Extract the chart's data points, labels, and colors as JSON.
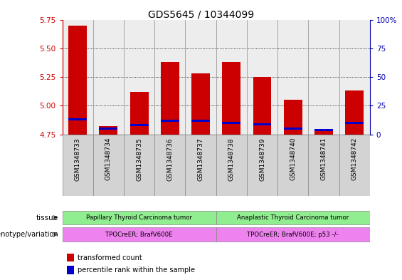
{
  "title": "GDS5645 / 10344099",
  "samples": [
    "GSM1348733",
    "GSM1348734",
    "GSM1348735",
    "GSM1348736",
    "GSM1348737",
    "GSM1348738",
    "GSM1348739",
    "GSM1348740",
    "GSM1348741",
    "GSM1348742"
  ],
  "red_values": [
    5.7,
    4.82,
    5.12,
    5.38,
    5.28,
    5.38,
    5.25,
    5.05,
    4.8,
    5.13
  ],
  "blue_values": [
    4.88,
    4.8,
    4.83,
    4.87,
    4.87,
    4.85,
    4.84,
    4.8,
    4.79,
    4.85
  ],
  "ymin": 4.75,
  "ymax": 5.75,
  "y2min": 0,
  "y2max": 100,
  "yticks": [
    4.75,
    5.0,
    5.25,
    5.5,
    5.75
  ],
  "y2ticks": [
    0,
    25,
    50,
    75,
    100
  ],
  "tissue_group1": "Papillary Thyroid Carcinoma tumor",
  "tissue_group2": "Anaplastic Thyroid Carcinoma tumor",
  "tissue_group1_samples": [
    0,
    1,
    2,
    3,
    4
  ],
  "tissue_group2_samples": [
    5,
    6,
    7,
    8,
    9
  ],
  "genotype_group1": "TPOCreER; BrafV600E",
  "genotype_group2": "TPOCreER; BrafV600E; p53 -/-",
  "tissue_color": "#90EE90",
  "genotype_color": "#EE82EE",
  "bar_color": "#CC0000",
  "blue_color": "#0000CC",
  "axis_left_color": "#CC0000",
  "axis_right_color": "#0000AA",
  "legend_red": "transformed count",
  "legend_blue": "percentile rank within the sample",
  "tissue_label": "tissue",
  "genotype_label": "genotype/variation",
  "cell_bg": "#D3D3D3"
}
